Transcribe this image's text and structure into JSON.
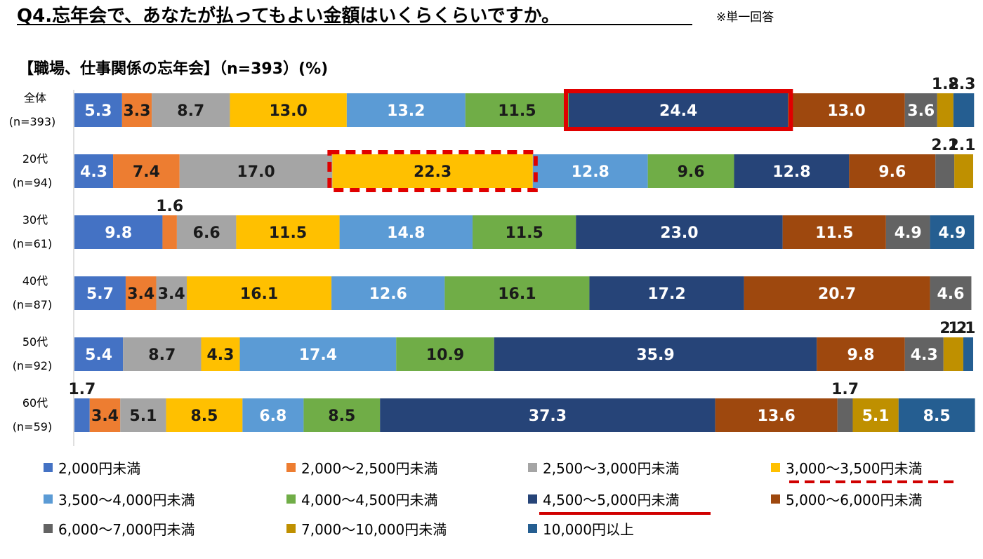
{
  "header": {
    "title": "Q4.忘年会で、あなたが払ってもよい金額はいくらくらいですか。",
    "note": "※単一回答",
    "subtitle": "【職場、仕事関係の忘年会】（n=393）(%)"
  },
  "chart_data": {
    "type": "bar",
    "stacked": true,
    "orientation": "horizontal",
    "unit": "%",
    "xlim": [
      0,
      100
    ],
    "categories": [
      [
        "全体",
        "(n=393)"
      ],
      [
        "20代",
        "(n=94)"
      ],
      [
        "30代",
        "(n=61)"
      ],
      [
        "40代",
        "(n=87)"
      ],
      [
        "50代",
        "(n=92)"
      ],
      [
        "60代",
        "(n=59)"
      ]
    ],
    "series": [
      {
        "name": "2,000円未満",
        "color": "#4472C4",
        "values": [
          5.3,
          4.3,
          9.8,
          5.7,
          5.4,
          1.7
        ]
      },
      {
        "name": "2,000～2,500円未満",
        "color": "#ED7D31",
        "values": [
          3.3,
          7.4,
          1.6,
          3.4,
          0,
          3.4
        ]
      },
      {
        "name": "2,500～3,000円未満",
        "color": "#A5A5A5",
        "values": [
          8.7,
          17.0,
          6.6,
          3.4,
          8.7,
          5.1
        ]
      },
      {
        "name": "3,000～3,500円未満",
        "color": "#FFC000",
        "values": [
          13.0,
          22.3,
          11.5,
          16.1,
          4.3,
          8.5
        ]
      },
      {
        "name": "3,500～4,000円未満",
        "color": "#5B9BD5",
        "values": [
          13.2,
          12.8,
          14.8,
          12.6,
          17.4,
          6.8
        ]
      },
      {
        "name": "4,000～4,500円未満",
        "color": "#70AD47",
        "values": [
          11.5,
          9.6,
          11.5,
          16.1,
          10.9,
          8.5
        ]
      },
      {
        "name": "4,500～5,000円未満",
        "color": "#264478",
        "values": [
          24.4,
          12.8,
          23.0,
          17.2,
          35.9,
          37.3
        ]
      },
      {
        "name": "5,000～6,000円未満",
        "color": "#9E480E",
        "values": [
          13.0,
          9.6,
          11.5,
          20.7,
          9.8,
          13.6
        ]
      },
      {
        "name": "6,000～7,000円未満",
        "color": "#636363",
        "values": [
          3.6,
          2.1,
          4.9,
          4.6,
          4.3,
          1.7
        ]
      },
      {
        "name": "7,000～10,000円未満",
        "color": "#BF9000",
        "values": [
          1.8,
          2.1,
          0,
          0,
          2.2,
          5.1
        ]
      },
      {
        "name": "10,000円以上",
        "color": "#255E91",
        "values": [
          2.3,
          0,
          4.9,
          0,
          1.1,
          8.5
        ]
      }
    ],
    "highlights": [
      {
        "row": 0,
        "series": 6,
        "style": "solid",
        "color": "#E00000"
      },
      {
        "row": 1,
        "series": 3,
        "style": "dashed",
        "color": "#E00000"
      }
    ],
    "legend_underlines": [
      {
        "series": 3,
        "style": "dashed",
        "color": "#D00000"
      },
      {
        "series": 6,
        "style": "solid",
        "color": "#D00000"
      }
    ]
  }
}
